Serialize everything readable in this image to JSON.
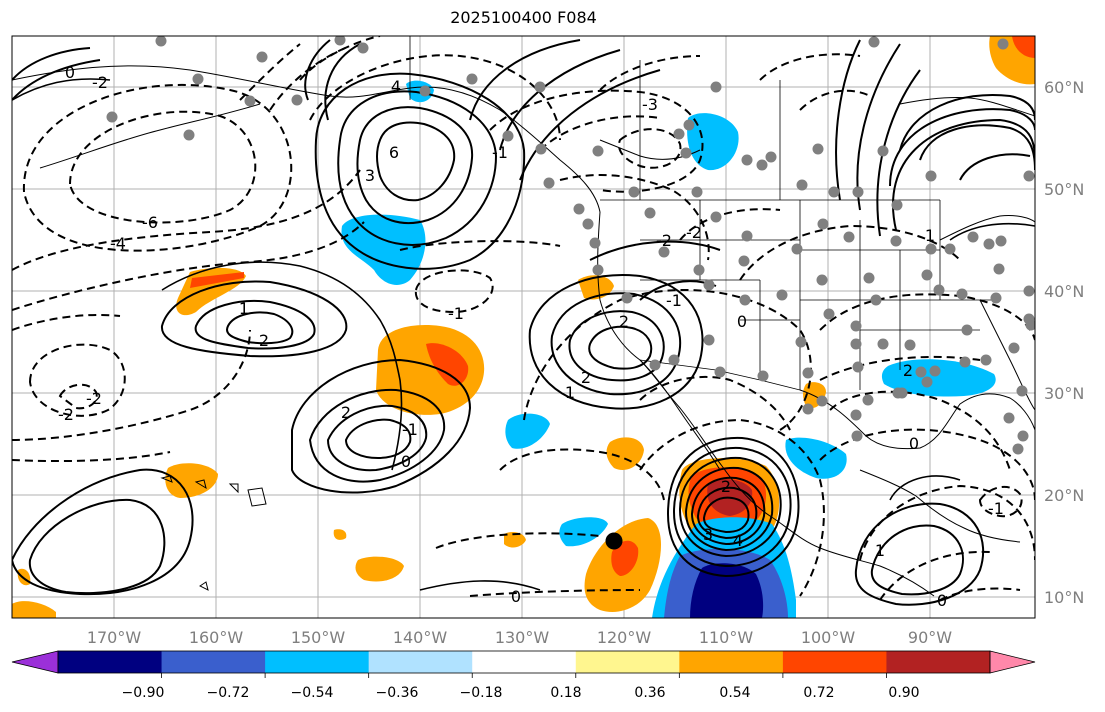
{
  "title": "2025100400 F084",
  "map": {
    "region": "North-East Pacific and North America",
    "lon_ticks": [
      "170°W",
      "160°W",
      "150°W",
      "140°W",
      "130°W",
      "120°W",
      "110°W",
      "100°W",
      "90°W"
    ],
    "lat_ticks": [
      "60°N",
      "50°N",
      "40°N",
      "30°N",
      "20°N",
      "10°N"
    ],
    "contour_labels": [
      "-6",
      "-4",
      "-2",
      "-1",
      "0",
      "1",
      "2",
      "3",
      "4",
      "6",
      "-3",
      "-2",
      "2",
      "1",
      "0",
      "-1",
      "2",
      "-2",
      "0",
      "-2",
      "2",
      "-1",
      "0",
      "1",
      "2",
      "3",
      "4",
      "2",
      "-2",
      "0",
      "0",
      "-1",
      "1",
      "-1"
    ]
  },
  "colorbar": {
    "ticks": [
      "−0.90",
      "−0.72",
      "−0.54",
      "−0.36",
      "−0.18",
      "0.18",
      "0.36",
      "0.54",
      "0.72",
      "0.90"
    ],
    "colors": [
      "#9b30d9",
      "#000080",
      "#3a5fcd",
      "#00bfff",
      "#b0e2ff",
      "#ffffff",
      "#fff68f",
      "#ffa500",
      "#ff4500",
      "#b22222",
      "#ff88aa"
    ]
  }
}
